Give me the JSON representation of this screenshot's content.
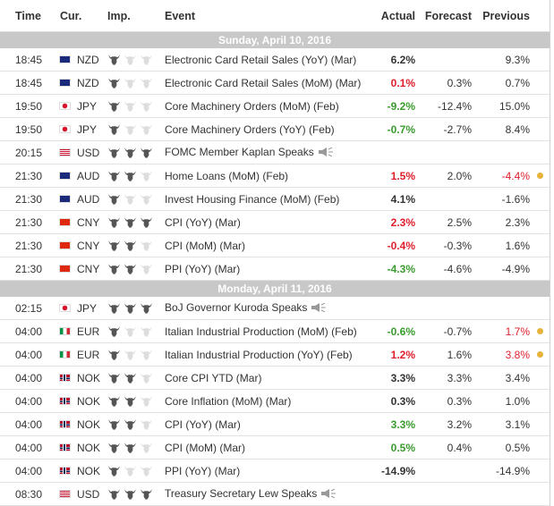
{
  "headers": {
    "time": "Time",
    "cur": "Cur.",
    "imp": "Imp.",
    "event": "Event",
    "actual": "Actual",
    "forecast": "Forecast",
    "previous": "Previous"
  },
  "colors": {
    "positive": "#3a9b2e",
    "negative": "#e01e2b",
    "date_bar": "#c8c8c8",
    "dot": "#e6b23c"
  },
  "sections": [
    {
      "date": "Sunday, April 10, 2016",
      "rows": [
        {
          "time": "18:45",
          "flag": "au",
          "cur": "NZD",
          "imp": 1,
          "event": "Electronic Card Retail Sales (YoY) (Mar)",
          "actual": "6.2%",
          "actual_color": "black",
          "forecast": "",
          "previous": "9.3%",
          "prev_color": "black",
          "dot": false,
          "speaker": false
        },
        {
          "time": "18:45",
          "flag": "au",
          "cur": "NZD",
          "imp": 1,
          "event": "Electronic Card Retail Sales (MoM) (Mar)",
          "actual": "0.1%",
          "actual_color": "red",
          "forecast": "0.3%",
          "previous": "0.7%",
          "prev_color": "black",
          "dot": false,
          "speaker": false
        },
        {
          "time": "19:50",
          "flag": "jp",
          "cur": "JPY",
          "imp": 1,
          "event": "Core Machinery Orders (MoM) (Feb)",
          "actual": "-9.2%",
          "actual_color": "green",
          "forecast": "-12.4%",
          "previous": "15.0%",
          "prev_color": "black",
          "dot": false,
          "speaker": false
        },
        {
          "time": "19:50",
          "flag": "jp",
          "cur": "JPY",
          "imp": 1,
          "event": "Core Machinery Orders (YoY) (Feb)",
          "actual": "-0.7%",
          "actual_color": "green",
          "forecast": "-2.7%",
          "previous": "8.4%",
          "prev_color": "black",
          "dot": false,
          "speaker": false
        },
        {
          "time": "20:15",
          "flag": "us",
          "cur": "USD",
          "imp": 3,
          "event": "FOMC Member Kaplan Speaks",
          "actual": "",
          "actual_color": "black",
          "forecast": "",
          "previous": "",
          "prev_color": "black",
          "dot": false,
          "speaker": true
        },
        {
          "time": "21:30",
          "flag": "au",
          "cur": "AUD",
          "imp": 2,
          "event": "Home Loans (MoM) (Feb)",
          "actual": "1.5%",
          "actual_color": "red",
          "forecast": "2.0%",
          "previous": "-4.4%",
          "prev_color": "red",
          "dot": true,
          "speaker": false
        },
        {
          "time": "21:30",
          "flag": "au",
          "cur": "AUD",
          "imp": 1,
          "event": "Invest Housing Finance (MoM) (Feb)",
          "actual": "4.1%",
          "actual_color": "black",
          "forecast": "",
          "previous": "-1.6%",
          "prev_color": "black",
          "dot": false,
          "speaker": false
        },
        {
          "time": "21:30",
          "flag": "cn",
          "cur": "CNY",
          "imp": 3,
          "event": "CPI (YoY) (Mar)",
          "actual": "2.3%",
          "actual_color": "red",
          "forecast": "2.5%",
          "previous": "2.3%",
          "prev_color": "black",
          "dot": false,
          "speaker": false
        },
        {
          "time": "21:30",
          "flag": "cn",
          "cur": "CNY",
          "imp": 2,
          "event": "CPI (MoM) (Mar)",
          "actual": "-0.4%",
          "actual_color": "red",
          "forecast": "-0.3%",
          "previous": "1.6%",
          "prev_color": "black",
          "dot": false,
          "speaker": false
        },
        {
          "time": "21:30",
          "flag": "cn",
          "cur": "CNY",
          "imp": 2,
          "event": "PPI (YoY) (Mar)",
          "actual": "-4.3%",
          "actual_color": "green",
          "forecast": "-4.6%",
          "previous": "-4.9%",
          "prev_color": "black",
          "dot": false,
          "speaker": false
        }
      ]
    },
    {
      "date": "Monday, April 11, 2016",
      "rows": [
        {
          "time": "02:15",
          "flag": "jp",
          "cur": "JPY",
          "imp": 3,
          "event": "BoJ Governor Kuroda Speaks",
          "actual": "",
          "actual_color": "black",
          "forecast": "",
          "previous": "",
          "prev_color": "black",
          "dot": false,
          "speaker": true
        },
        {
          "time": "04:00",
          "flag": "it",
          "cur": "EUR",
          "imp": 1,
          "event": "Italian Industrial Production (MoM) (Feb)",
          "actual": "-0.6%",
          "actual_color": "green",
          "forecast": "-0.7%",
          "previous": "1.7%",
          "prev_color": "red",
          "dot": true,
          "speaker": false
        },
        {
          "time": "04:00",
          "flag": "it",
          "cur": "EUR",
          "imp": 1,
          "event": "Italian Industrial Production (YoY) (Feb)",
          "actual": "1.2%",
          "actual_color": "red",
          "forecast": "1.6%",
          "previous": "3.8%",
          "prev_color": "red",
          "dot": true,
          "speaker": false
        },
        {
          "time": "04:00",
          "flag": "no",
          "cur": "NOK",
          "imp": 2,
          "event": "Core CPI YTD (Mar)",
          "actual": "3.3%",
          "actual_color": "black",
          "forecast": "3.3%",
          "previous": "3.4%",
          "prev_color": "black",
          "dot": false,
          "speaker": false
        },
        {
          "time": "04:00",
          "flag": "no",
          "cur": "NOK",
          "imp": 2,
          "event": "Core Inflation (MoM) (Mar)",
          "actual": "0.3%",
          "actual_color": "black",
          "forecast": "0.3%",
          "previous": "1.0%",
          "prev_color": "black",
          "dot": false,
          "speaker": false
        },
        {
          "time": "04:00",
          "flag": "no",
          "cur": "NOK",
          "imp": 2,
          "event": "CPI (YoY) (Mar)",
          "actual": "3.3%",
          "actual_color": "green",
          "forecast": "3.2%",
          "previous": "3.1%",
          "prev_color": "black",
          "dot": false,
          "speaker": false
        },
        {
          "time": "04:00",
          "flag": "no",
          "cur": "NOK",
          "imp": 2,
          "event": "CPI (MoM) (Mar)",
          "actual": "0.5%",
          "actual_color": "green",
          "forecast": "0.4%",
          "previous": "0.5%",
          "prev_color": "black",
          "dot": false,
          "speaker": false
        },
        {
          "time": "04:00",
          "flag": "no",
          "cur": "NOK",
          "imp": 1,
          "event": "PPI (YoY) (Mar)",
          "actual": "-14.9%",
          "actual_color": "black",
          "forecast": "",
          "previous": "-14.9%",
          "prev_color": "black",
          "dot": false,
          "speaker": false
        },
        {
          "time": "08:30",
          "flag": "us",
          "cur": "USD",
          "imp": 3,
          "event": "Treasury Secretary Lew Speaks",
          "actual": "",
          "actual_color": "black",
          "forecast": "",
          "previous": "",
          "prev_color": "black",
          "dot": false,
          "speaker": true
        }
      ]
    }
  ]
}
